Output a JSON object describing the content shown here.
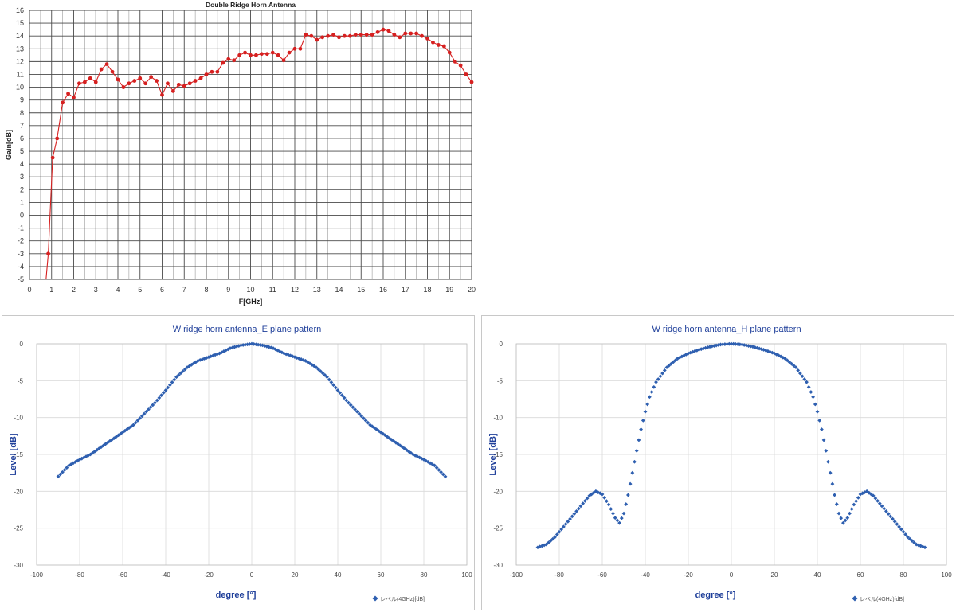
{
  "colors": {
    "gain_series": "#d62020",
    "pattern_series": "#2e5fb0",
    "title_blue": "#1f3f9a",
    "grid_dark": "#4a4a4a",
    "grid_light": "#d9d9d9"
  },
  "chart_data": [
    {
      "type": "line",
      "title": "Double Ridge Horn Antenna",
      "xlabel": "F[GHz]",
      "ylabel": "Gain[dB]",
      "xlim": [
        0,
        20
      ],
      "ylim": [
        -5,
        16
      ],
      "grid": true,
      "x_ticks": [
        "0",
        "1",
        "2",
        "3",
        "4",
        "5",
        "6",
        "7",
        "8",
        "9",
        "10",
        "11",
        "12",
        "13",
        "14",
        "15",
        "16",
        "17",
        "18",
        "19",
        "20"
      ],
      "y_ticks": [
        "-5",
        "-4",
        "-3",
        "-2",
        "-1",
        "0",
        "1",
        "2",
        "3",
        "4",
        "5",
        "6",
        "7",
        "8",
        "9",
        "10",
        "11",
        "12",
        "13",
        "14",
        "15",
        "16"
      ],
      "series": [
        {
          "x": [
            0.75,
            0.85,
            1.05,
            1.25,
            1.5,
            1.75,
            2.0,
            2.25,
            2.5,
            2.75,
            3.0,
            3.25,
            3.5,
            3.75,
            4.0,
            4.25,
            4.5,
            4.75,
            5.0,
            5.25,
            5.5,
            5.75,
            6.0,
            6.25,
            6.5,
            6.75,
            7.0,
            7.25,
            7.5,
            7.75,
            8.0,
            8.25,
            8.5,
            8.75,
            9.0,
            9.25,
            9.5,
            9.75,
            10.0,
            10.25,
            10.5,
            10.75,
            11.0,
            11.25,
            11.5,
            11.75,
            12.0,
            12.25,
            12.5,
            12.75,
            13.0,
            13.25,
            13.5,
            13.75,
            14.0,
            14.25,
            14.5,
            14.75,
            15.0,
            15.25,
            15.5,
            15.75,
            16.0,
            16.25,
            16.5,
            16.75,
            17.0,
            17.25,
            17.5,
            17.75,
            18.0,
            18.25,
            18.5,
            18.75,
            19.0,
            19.25,
            19.5,
            19.75,
            20.0
          ],
          "y": [
            -5.0,
            -3.0,
            4.5,
            6.0,
            8.8,
            9.5,
            9.2,
            10.3,
            10.4,
            10.7,
            10.4,
            11.4,
            11.8,
            11.2,
            10.6,
            10.0,
            10.3,
            10.5,
            10.7,
            10.3,
            10.8,
            10.5,
            9.4,
            10.3,
            9.7,
            10.2,
            10.1,
            10.3,
            10.5,
            10.7,
            11.0,
            11.2,
            11.2,
            11.9,
            12.2,
            12.1,
            12.5,
            12.7,
            12.5,
            12.5,
            12.6,
            12.6,
            12.7,
            12.5,
            12.1,
            12.7,
            13.0,
            13.0,
            14.1,
            14.0,
            13.7,
            13.9,
            14.0,
            14.1,
            13.9,
            14.0,
            14.0,
            14.1,
            14.1,
            14.1,
            14.1,
            14.3,
            14.5,
            14.4,
            14.1,
            13.9,
            14.2,
            14.2,
            14.2,
            14.0,
            13.8,
            13.5,
            13.3,
            13.2,
            12.7,
            12.0,
            11.7,
            11.0,
            10.4
          ]
        }
      ]
    },
    {
      "type": "scatter",
      "title": "W ridge horn antenna_E plane pattern",
      "xlabel": "degree [°]",
      "ylabel": "Level [dB]",
      "xlim": [
        -100,
        100
      ],
      "ylim": [
        -30,
        0
      ],
      "grid": true,
      "legend_position": "bottom-right",
      "x_ticks": [
        "-100",
        "-80",
        "-60",
        "-40",
        "-20",
        "0",
        "20",
        "40",
        "60",
        "80",
        "100"
      ],
      "y_ticks": [
        "0",
        "-5",
        "-10",
        "-15",
        "-20",
        "-25",
        "-30"
      ],
      "series": [
        {
          "name": "レベル(4GHz)[dB]",
          "x": [
            -90,
            -85,
            -80,
            -75,
            -70,
            -65,
            -60,
            -55,
            -50,
            -45,
            -40,
            -35,
            -30,
            -25,
            -20,
            -15,
            -10,
            -5,
            0
          ],
          "y": [
            -18.0,
            -16.5,
            -15.7,
            -15.0,
            -14.0,
            -13.0,
            -12.0,
            -11.0,
            -9.5,
            -8.0,
            -6.3,
            -4.5,
            -3.2,
            -2.3,
            -1.8,
            -1.3,
            -0.6,
            -0.2,
            0.0
          ],
          "symmetric": true
        }
      ]
    },
    {
      "type": "scatter",
      "title": "W ridge horn antenna_H plane pattern",
      "xlabel": "degree [°]",
      "ylabel": "Level [dB]",
      "xlim": [
        -100,
        100
      ],
      "ylim": [
        -30,
        0
      ],
      "grid": true,
      "legend_position": "bottom-right",
      "x_ticks": [
        "-100",
        "-80",
        "-60",
        "-40",
        "-20",
        "0",
        "20",
        "40",
        "60",
        "80",
        "100"
      ],
      "y_ticks": [
        "0",
        "-5",
        "-10",
        "-15",
        "-20",
        "-25",
        "-30"
      ],
      "series": [
        {
          "name": "レベル(4GHz)[dB]",
          "x": [
            -90,
            -86,
            -82,
            -78,
            -74,
            -70,
            -66,
            -63,
            -60,
            -57,
            -54,
            -52,
            -50,
            -48,
            -46,
            -44,
            -42,
            -40,
            -38,
            -35,
            -30,
            -25,
            -20,
            -15,
            -10,
            -5,
            0
          ],
          "y": [
            -27.6,
            -27.2,
            -26.2,
            -24.8,
            -23.4,
            -22.0,
            -20.6,
            -20.0,
            -20.4,
            -21.8,
            -23.6,
            -24.3,
            -23.0,
            -20.5,
            -17.5,
            -14.5,
            -11.6,
            -9.2,
            -7.2,
            -5.2,
            -3.2,
            -2.0,
            -1.3,
            -0.8,
            -0.4,
            -0.1,
            0.0
          ],
          "symmetric": true
        }
      ]
    }
  ]
}
